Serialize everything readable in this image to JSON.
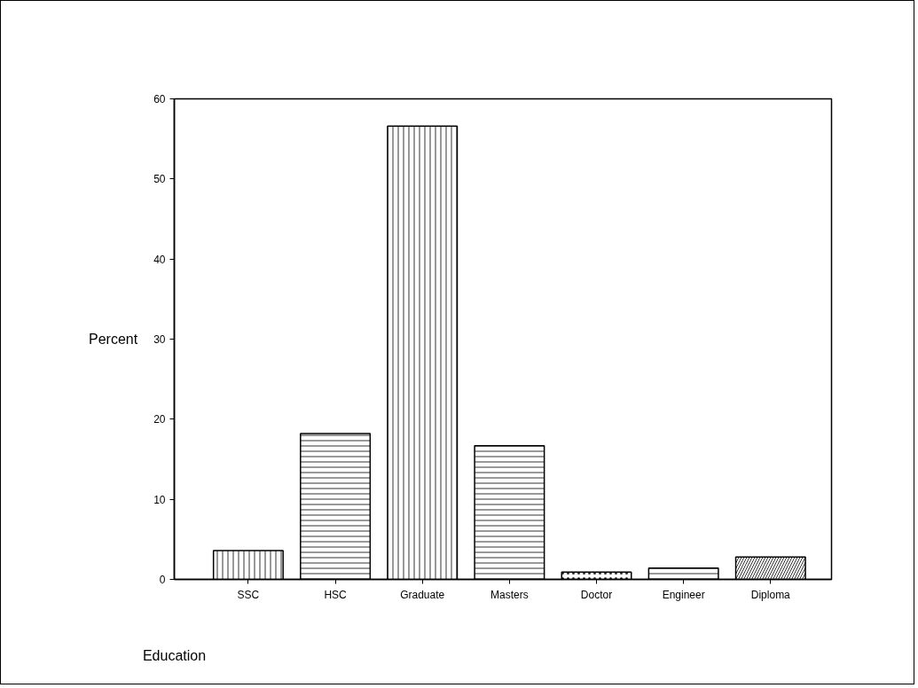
{
  "chart_data": {
    "type": "bar",
    "xlabel": "Education",
    "ylabel": "Percent",
    "categories": [
      "SSC",
      "HSC",
      "Graduate",
      "Masters",
      "Doctor",
      "Engineer",
      "Diploma"
    ],
    "values": [
      3.6,
      18.2,
      56.6,
      16.7,
      0.9,
      1.4,
      2.8
    ],
    "color": "#ffffff",
    "ylim": [
      0,
      60
    ],
    "yticks": [
      0,
      10,
      20,
      30,
      40,
      50,
      60
    ],
    "grid": false
  }
}
